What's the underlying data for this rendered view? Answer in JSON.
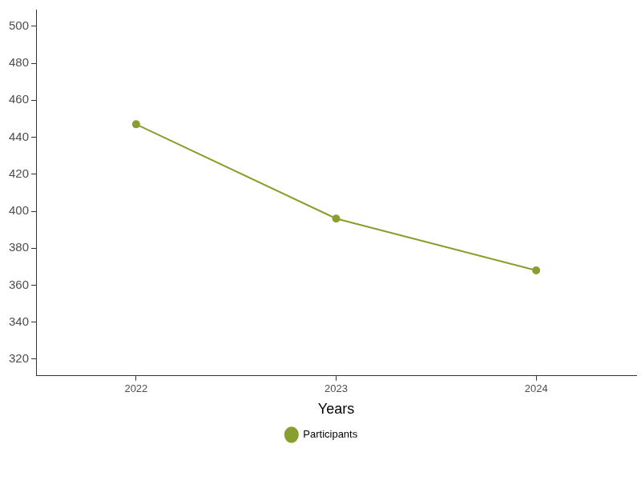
{
  "chart_data": {
    "type": "line",
    "x_label": "Years",
    "categories": [
      "2022",
      "2023",
      "2024"
    ],
    "series": [
      {
        "name": "Participants",
        "color": "#889e2e",
        "values": [
          447,
          396,
          368
        ],
        "marker": "circle"
      }
    ],
    "ylim": [
      311,
      509
    ],
    "yticks": [
      320,
      340,
      360,
      380,
      400,
      420,
      440,
      460,
      480,
      500
    ],
    "grid": false,
    "legend": "bottom"
  }
}
